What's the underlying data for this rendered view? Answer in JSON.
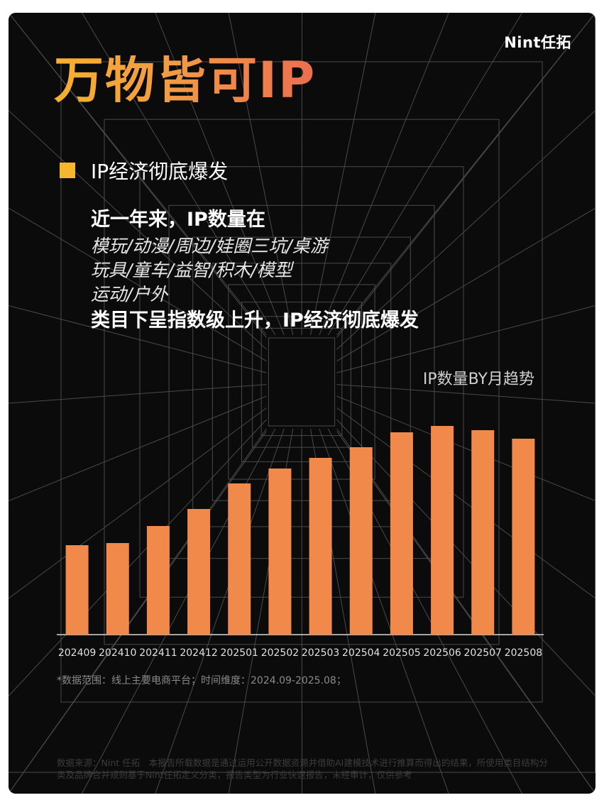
{
  "brand": "Nint任拓",
  "title": "万物皆可IP",
  "section_label": "IP经济彻底爆发",
  "body": {
    "line1": "近一年来，IP数量在",
    "line2": "模玩/动漫/周边/娃圈三坑/桌游",
    "line3": "玩具/童车/益智/积木/模型",
    "line4": "运动/户外",
    "line5": "类目下呈指数级上升，IP经济彻底爆发"
  },
  "chart_data": {
    "type": "bar",
    "title": "IP数量BY月趋势",
    "categories": [
      "202409",
      "202410",
      "202411",
      "202412",
      "202501",
      "202502",
      "202503",
      "202504",
      "202505",
      "202506",
      "202507",
      "202508"
    ],
    "values": [
      42,
      43,
      51,
      59,
      71,
      78,
      83,
      88,
      95,
      98,
      96,
      92
    ],
    "ylim": [
      0,
      100
    ],
    "bar_color": "#f0894a",
    "grid": false
  },
  "note": "*数据范围：线上主要电商平台；时间维度：2024.09-2025.08；",
  "footer": "数据来源：Nint 任拓　本报告所载数据是通过运用公开数据资源并借助AI建模技术进行推算而得出的结果，所使用类目结构分类及品牌合并规则基于Nint任拓定义分类，报告类型为行业快速报告，未经审计，仅供参考"
}
